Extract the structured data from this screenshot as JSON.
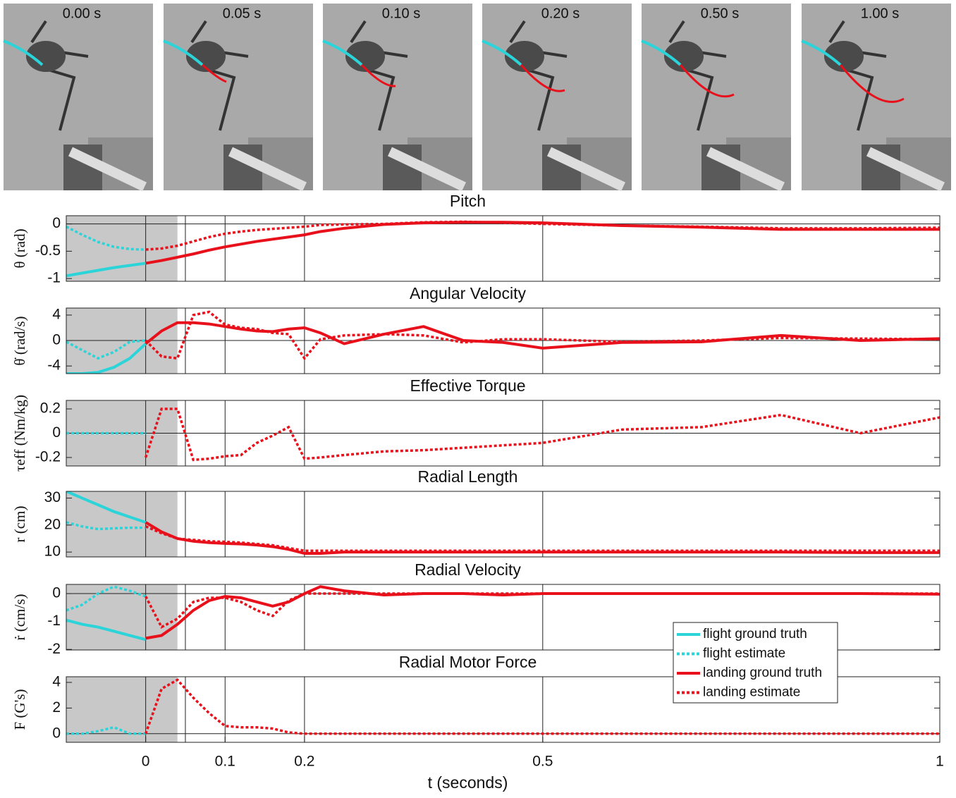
{
  "frames": [
    "0.00 s",
    "0.05 s",
    "0.10 s",
    "0.20 s",
    "0.50 s",
    "1.00 s"
  ],
  "chart_data": [
    {
      "type": "line",
      "title": "Pitch",
      "ylabel": "θ (rad)",
      "xlim": [
        -0.1,
        1
      ],
      "ylim": [
        -1.05,
        0.15
      ],
      "yticks": [
        -1,
        -0.5,
        0
      ],
      "hline": 0,
      "vlines": [
        0,
        0.05,
        0.1,
        0.2,
        0.5
      ],
      "shade": [
        -0.1,
        0.04
      ],
      "series": [
        {
          "color": "#2ad4d9",
          "style": "solid",
          "x": [
            -0.1,
            -0.08,
            -0.06,
            -0.04,
            -0.02,
            0
          ],
          "values": [
            -0.95,
            -0.9,
            -0.85,
            -0.8,
            -0.76,
            -0.72
          ]
        },
        {
          "color": "#2ad4d9",
          "style": "dotted",
          "x": [
            -0.1,
            -0.08,
            -0.06,
            -0.04,
            -0.02,
            0
          ],
          "values": [
            -0.05,
            -0.2,
            -0.33,
            -0.42,
            -0.46,
            -0.47
          ]
        },
        {
          "color": "#e8101a",
          "style": "solid",
          "x": [
            0,
            0.02,
            0.04,
            0.06,
            0.08,
            0.1,
            0.12,
            0.14,
            0.16,
            0.18,
            0.2,
            0.22,
            0.25,
            0.3,
            0.35,
            0.4,
            0.45,
            0.5,
            0.6,
            0.7,
            0.8,
            0.9,
            1
          ],
          "values": [
            -0.72,
            -0.67,
            -0.61,
            -0.55,
            -0.48,
            -0.42,
            -0.37,
            -0.32,
            -0.28,
            -0.24,
            -0.2,
            -0.14,
            -0.08,
            -0.01,
            0.02,
            0.03,
            0.03,
            0.02,
            -0.03,
            -0.06,
            -0.1,
            -0.1,
            -0.1
          ]
        },
        {
          "color": "#e8101a",
          "style": "dotted",
          "x": [
            0,
            0.02,
            0.04,
            0.06,
            0.08,
            0.1,
            0.12,
            0.14,
            0.16,
            0.18,
            0.2,
            0.22,
            0.25,
            0.3,
            0.35,
            0.4,
            0.45,
            0.5,
            0.6,
            0.7,
            0.8,
            0.9,
            1
          ],
          "values": [
            -0.47,
            -0.45,
            -0.4,
            -0.32,
            -0.24,
            -0.18,
            -0.14,
            -0.11,
            -0.09,
            -0.07,
            -0.05,
            -0.02,
            -0.01,
            0,
            0.03,
            0.04,
            0.02,
            0,
            -0.03,
            -0.05,
            -0.08,
            -0.08,
            -0.07
          ]
        }
      ]
    },
    {
      "type": "line",
      "title": "Angular Velocity",
      "ylabel": "θ̇ (rad/s)",
      "xlim": [
        -0.1,
        1
      ],
      "ylim": [
        -5.2,
        5.1
      ],
      "yticks": [
        -4,
        0,
        4
      ],
      "hline": 0,
      "vlines": [
        0,
        0.05,
        0.1,
        0.2,
        0.5
      ],
      "shade": [
        -0.1,
        0.04
      ],
      "series": [
        {
          "color": "#2ad4d9",
          "style": "solid",
          "x": [
            -0.1,
            -0.08,
            -0.06,
            -0.04,
            -0.02,
            0
          ],
          "values": [
            -5.2,
            -5.2,
            -5.0,
            -4.2,
            -2.8,
            -0.5
          ]
        },
        {
          "color": "#2ad4d9",
          "style": "dotted",
          "x": [
            -0.1,
            -0.08,
            -0.06,
            -0.04,
            -0.02,
            0
          ],
          "values": [
            -0.2,
            -1.5,
            -2.8,
            -1.8,
            -0.2,
            0
          ]
        },
        {
          "color": "#e8101a",
          "style": "solid",
          "x": [
            0,
            0.02,
            0.04,
            0.06,
            0.08,
            0.1,
            0.12,
            0.14,
            0.16,
            0.18,
            0.2,
            0.22,
            0.25,
            0.3,
            0.35,
            0.4,
            0.45,
            0.5,
            0.6,
            0.7,
            0.8,
            0.9,
            1
          ],
          "values": [
            -0.5,
            1.5,
            2.8,
            2.8,
            2.6,
            2.2,
            1.8,
            1.5,
            1.4,
            1.8,
            2.0,
            1.2,
            -0.5,
            1.0,
            2.2,
            0,
            -0.3,
            -1.2,
            -0.3,
            -0.2,
            0.8,
            0,
            0.3
          ]
        },
        {
          "color": "#e8101a",
          "style": "dotted",
          "x": [
            0,
            0.02,
            0.04,
            0.06,
            0.08,
            0.1,
            0.12,
            0.14,
            0.16,
            0.18,
            0.2,
            0.22,
            0.25,
            0.3,
            0.35,
            0.4,
            0.45,
            0.5,
            0.6,
            0.7,
            0.8,
            0.9,
            1
          ],
          "values": [
            0,
            -2.5,
            -2.8,
            4.0,
            4.5,
            2.5,
            2.0,
            1.8,
            1.2,
            1.0,
            -2.8,
            0.2,
            0.8,
            1.0,
            0.8,
            -0.3,
            0.2,
            0.2,
            -0.2,
            0,
            0.4,
            0.3,
            0.2
          ]
        }
      ]
    },
    {
      "type": "line",
      "title": "Effective Torque",
      "ylabel": "τeff (Nm/kg)",
      "xlim": [
        -0.1,
        1
      ],
      "ylim": [
        -0.27,
        0.27
      ],
      "yticks": [
        -0.2,
        0,
        0.2
      ],
      "hline": 0,
      "vlines": [
        0,
        0.05,
        0.1,
        0.2,
        0.5
      ],
      "shade": [
        -0.1,
        0.04
      ],
      "series": [
        {
          "color": "#2ad4d9",
          "style": "dotted",
          "x": [
            -0.1,
            -0.08,
            -0.06,
            -0.04,
            -0.02,
            0
          ],
          "values": [
            0,
            0,
            0,
            0,
            0,
            0
          ]
        },
        {
          "color": "#e8101a",
          "style": "dotted",
          "x": [
            0,
            0.02,
            0.04,
            0.06,
            0.08,
            0.1,
            0.12,
            0.14,
            0.16,
            0.18,
            0.2,
            0.22,
            0.25,
            0.3,
            0.35,
            0.4,
            0.45,
            0.5,
            0.6,
            0.7,
            0.8,
            0.9,
            1
          ],
          "values": [
            -0.2,
            0.2,
            0.2,
            -0.22,
            -0.21,
            -0.19,
            -0.18,
            -0.08,
            -0.02,
            0.05,
            -0.21,
            -0.2,
            -0.18,
            -0.15,
            -0.14,
            -0.12,
            -0.1,
            -0.08,
            0.03,
            0.05,
            0.15,
            0,
            0.13
          ]
        }
      ]
    },
    {
      "type": "line",
      "title": "Radial Length",
      "ylabel": "r (cm)",
      "xlim": [
        -0.1,
        1
      ],
      "ylim": [
        8.2,
        32.5
      ],
      "yticks": [
        10,
        20,
        30
      ],
      "vlines": [
        0,
        0.05,
        0.1,
        0.2,
        0.5
      ],
      "shade": [
        -0.1,
        0.04
      ],
      "series": [
        {
          "color": "#2ad4d9",
          "style": "solid",
          "x": [
            -0.1,
            -0.08,
            -0.06,
            -0.04,
            -0.02,
            0
          ],
          "values": [
            32.5,
            30,
            27.5,
            25,
            23,
            21
          ]
        },
        {
          "color": "#2ad4d9",
          "style": "dotted",
          "x": [
            -0.1,
            -0.08,
            -0.06,
            -0.04,
            -0.02,
            0
          ],
          "values": [
            21,
            19.5,
            18.5,
            18.8,
            19,
            19
          ]
        },
        {
          "color": "#e8101a",
          "style": "solid",
          "x": [
            0,
            0.02,
            0.04,
            0.06,
            0.08,
            0.1,
            0.12,
            0.14,
            0.16,
            0.18,
            0.2,
            0.22,
            0.25,
            0.3,
            0.35,
            0.4,
            0.45,
            0.5,
            0.6,
            0.7,
            0.8,
            0.9,
            1
          ],
          "values": [
            21,
            17.5,
            15,
            14,
            13.5,
            13.2,
            13,
            12.6,
            12,
            11,
            9.5,
            9.5,
            10,
            10,
            10,
            10,
            10,
            10,
            10,
            10,
            10,
            9.8,
            9.8
          ]
        },
        {
          "color": "#e8101a",
          "style": "dotted",
          "x": [
            0,
            0.02,
            0.04,
            0.06,
            0.08,
            0.1,
            0.12,
            0.14,
            0.16,
            0.18,
            0.2,
            0.22,
            0.25,
            0.3,
            0.35,
            0.4,
            0.45,
            0.5,
            0.6,
            0.7,
            0.8,
            0.9,
            1
          ],
          "values": [
            19.5,
            17,
            15,
            14.5,
            14,
            13.8,
            13.5,
            13,
            12.5,
            11.5,
            10.5,
            10.5,
            10.5,
            10.5,
            10.5,
            10.5,
            10.5,
            10.5,
            10.5,
            10.5,
            10.5,
            10.5,
            10.5
          ]
        }
      ]
    },
    {
      "type": "line",
      "title": "Radial Velocity",
      "ylabel": "ṙ (cm/s)",
      "xlim": [
        -0.1,
        1
      ],
      "ylim": [
        -2.02,
        0.33
      ],
      "yticks": [
        -2,
        -1,
        0
      ],
      "hline": 0,
      "vlines": [
        0,
        0.05,
        0.1,
        0.2,
        0.5
      ],
      "shade": [
        -0.1,
        0.04
      ],
      "legend": "lower right",
      "series": [
        {
          "name": "flight ground truth",
          "color": "#2ad4d9",
          "style": "solid",
          "x": [
            -0.1,
            -0.08,
            -0.06,
            -0.04,
            -0.02,
            0
          ],
          "values": [
            -0.95,
            -1.1,
            -1.2,
            -1.35,
            -1.5,
            -1.65
          ]
        },
        {
          "name": "flight estimate",
          "color": "#2ad4d9",
          "style": "dotted",
          "x": [
            -0.1,
            -0.08,
            -0.06,
            -0.04,
            -0.02,
            0
          ],
          "values": [
            -0.6,
            -0.4,
            0,
            0.25,
            0.1,
            -0.1
          ]
        },
        {
          "name": "landing ground truth",
          "color": "#e8101a",
          "style": "solid",
          "x": [
            0,
            0.02,
            0.04,
            0.06,
            0.08,
            0.1,
            0.12,
            0.14,
            0.16,
            0.18,
            0.2,
            0.22,
            0.25,
            0.3,
            0.35,
            0.4,
            0.45,
            0.5,
            0.6,
            0.7,
            0.8,
            0.9,
            1
          ],
          "values": [
            -1.6,
            -1.5,
            -1.1,
            -0.6,
            -0.25,
            -0.1,
            -0.15,
            -0.3,
            -0.45,
            -0.3,
            0,
            0.25,
            0.1,
            -0.05,
            0,
            0,
            -0.05,
            0,
            0,
            0,
            0,
            0,
            -0.02
          ]
        },
        {
          "name": "landing estimate",
          "color": "#e8101a",
          "style": "dotted",
          "x": [
            0,
            0.02,
            0.04,
            0.06,
            0.08,
            0.1,
            0.12,
            0.14,
            0.16,
            0.18,
            0.2,
            0.22,
            0.25,
            0.3,
            0.35,
            0.4,
            0.45,
            0.5,
            0.6,
            0.7,
            0.8,
            0.9,
            1
          ],
          "values": [
            -0.1,
            -1.2,
            -0.9,
            -0.3,
            -0.15,
            -0.15,
            -0.3,
            -0.6,
            -0.8,
            -0.25,
            0,
            0,
            0,
            0,
            0,
            0,
            0,
            0,
            0,
            0,
            0,
            0,
            0
          ]
        }
      ]
    },
    {
      "type": "line",
      "title": "Radial Motor Force",
      "ylabel": "F (G's)",
      "xlabel": "t (seconds)",
      "xlim": [
        -0.1,
        1
      ],
      "xticks": [
        0,
        0.1,
        0.2,
        0.5,
        1
      ],
      "ylim": [
        -0.67,
        4.44
      ],
      "yticks": [
        0,
        2,
        4
      ],
      "hline": 0,
      "vlines": [
        0,
        0.05,
        0.1,
        0.2,
        0.5
      ],
      "shade": [
        -0.1,
        0.04
      ],
      "series": [
        {
          "color": "#2ad4d9",
          "style": "dotted",
          "x": [
            -0.1,
            -0.08,
            -0.06,
            -0.04,
            -0.02,
            0
          ],
          "values": [
            0,
            0,
            0.2,
            0.5,
            0,
            0
          ]
        },
        {
          "color": "#e8101a",
          "style": "dotted",
          "x": [
            0,
            0.02,
            0.04,
            0.06,
            0.08,
            0.1,
            0.12,
            0.14,
            0.16,
            0.18,
            0.2,
            0.22,
            0.25,
            0.3,
            0.35,
            0.4,
            0.45,
            0.5,
            0.6,
            0.7,
            0.8,
            0.9,
            1
          ],
          "values": [
            0,
            3.5,
            4.2,
            2.8,
            1.6,
            0.6,
            0.5,
            0.5,
            0.4,
            0.1,
            0,
            0,
            0,
            0,
            0,
            0,
            0,
            0,
            0,
            0,
            0,
            0,
            0
          ]
        }
      ]
    }
  ]
}
